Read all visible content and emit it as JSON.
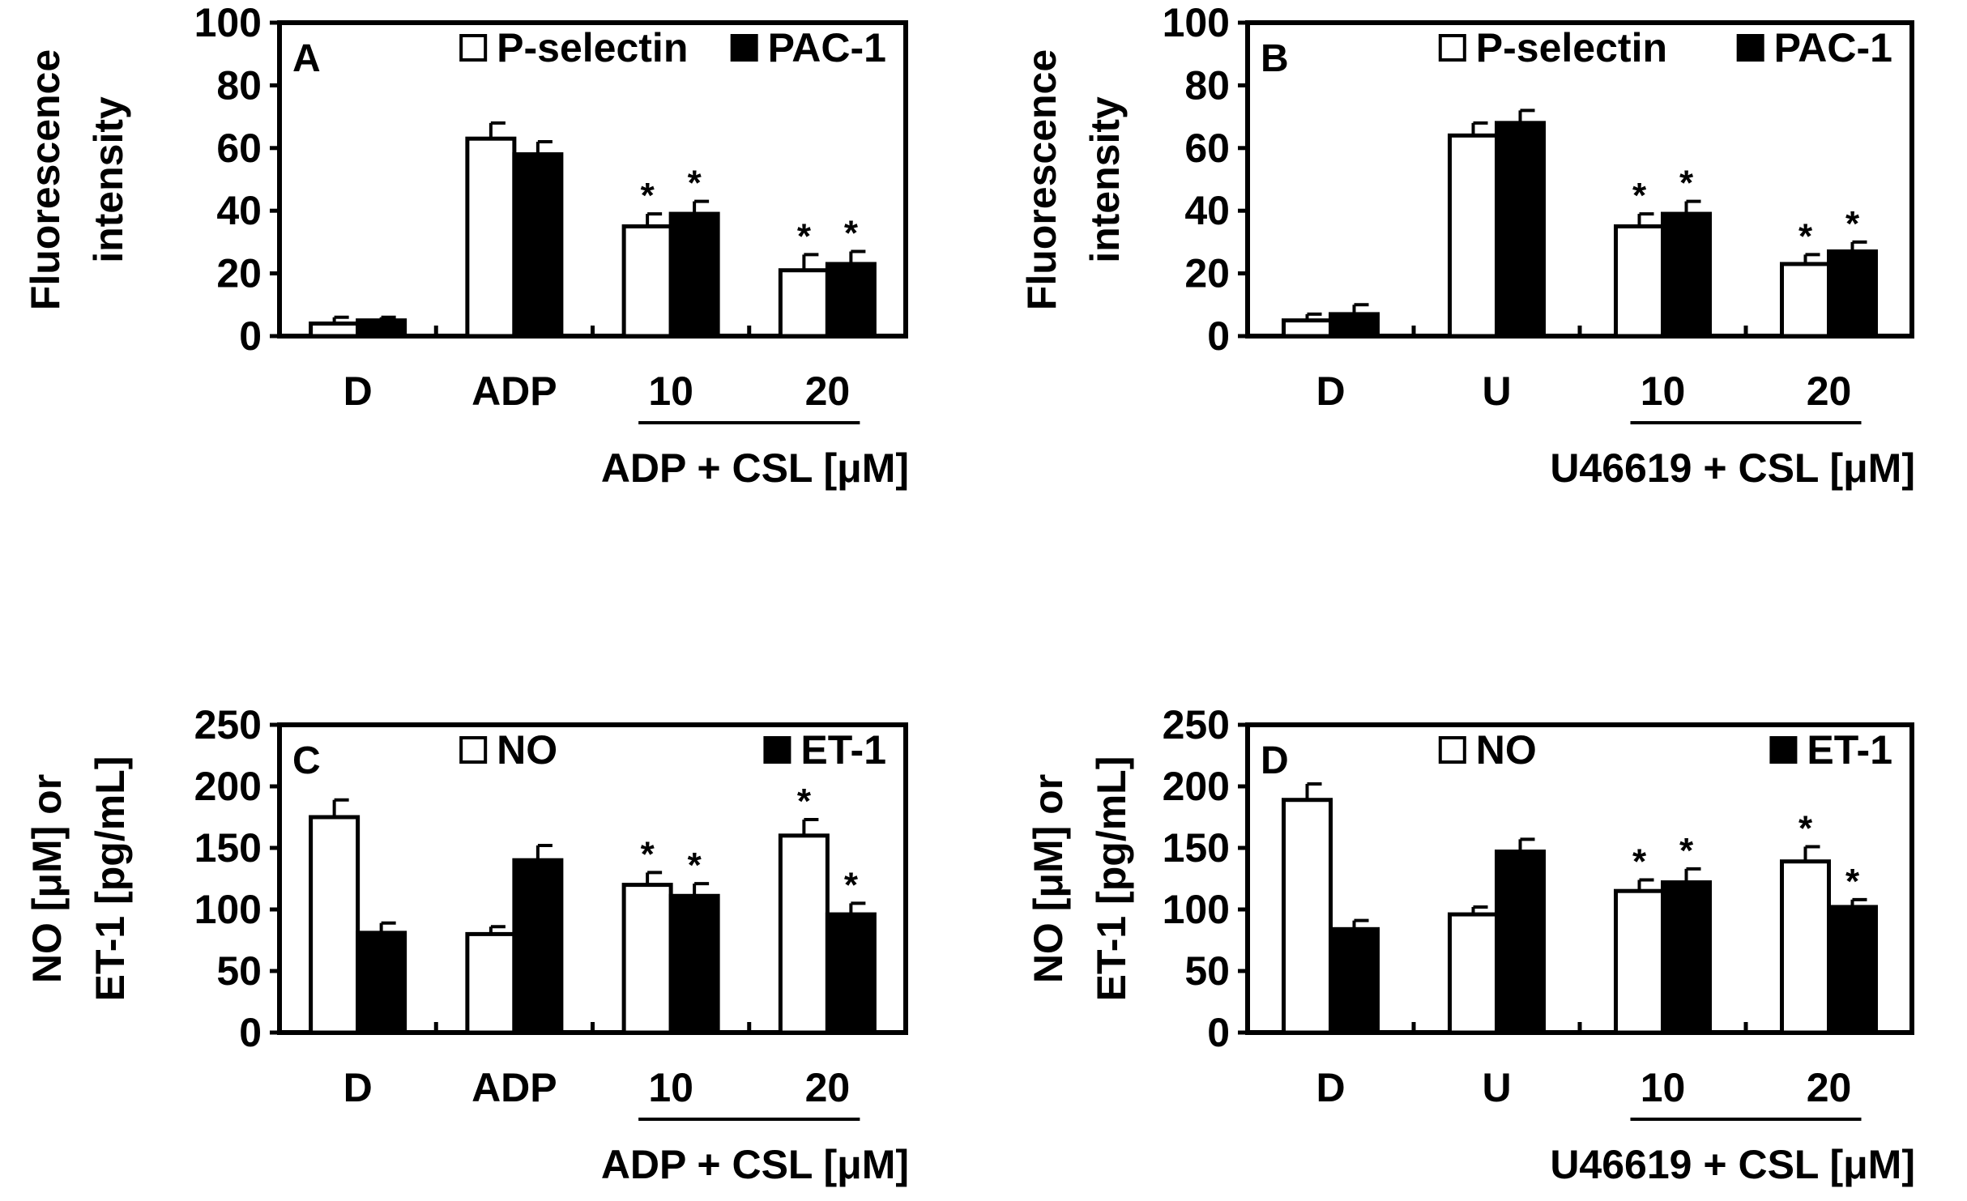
{
  "chart_data": [
    {
      "type": "bar",
      "panel": "A",
      "ylabel": [
        "Fluorescence",
        "intensity"
      ],
      "ylim": [
        0,
        100
      ],
      "yticks": [
        "0",
        "20",
        "40",
        "60",
        "80",
        "100"
      ],
      "categories": [
        "D",
        "ADP",
        "10",
        "20"
      ],
      "group_label": "ADP + CSL [μM]",
      "legend": {
        "placement": "top-right"
      },
      "series": [
        {
          "name": "P-selectin",
          "color": "#ffffff",
          "values": [
            4,
            63,
            35,
            21
          ],
          "errors": [
            2,
            5,
            4,
            5
          ],
          "sig": [
            "",
            "",
            "*",
            "*"
          ]
        },
        {
          "name": "PAC-1",
          "color": "#000000",
          "values": [
            5,
            58,
            39,
            23
          ],
          "errors": [
            1,
            4,
            4,
            4
          ],
          "sig": [
            "",
            "",
            "*",
            "*"
          ]
        }
      ]
    },
    {
      "type": "bar",
      "panel": "B",
      "ylabel": [
        "Fluorescence",
        "intensity"
      ],
      "ylim": [
        0,
        100
      ],
      "yticks": [
        "0",
        "20",
        "40",
        "60",
        "80",
        "100"
      ],
      "categories": [
        "D",
        "U",
        "10",
        "20"
      ],
      "group_label": "U46619 + CSL [μM]",
      "legend": {
        "placement": "top-right"
      },
      "series": [
        {
          "name": "P-selectin",
          "color": "#ffffff",
          "values": [
            5,
            64,
            35,
            23
          ],
          "errors": [
            2,
            4,
            4,
            3
          ],
          "sig": [
            "",
            "",
            "*",
            "*"
          ]
        },
        {
          "name": "PAC-1",
          "color": "#000000",
          "values": [
            7,
            68,
            39,
            27
          ],
          "errors": [
            3,
            4,
            4,
            3
          ],
          "sig": [
            "",
            "",
            "*",
            "*"
          ]
        }
      ]
    },
    {
      "type": "bar",
      "panel": "C",
      "ylabel": [
        "NO [μM] or",
        "ET-1 [pg/mL]"
      ],
      "ylim": [
        0,
        250
      ],
      "yticks": [
        "0",
        "50",
        "100",
        "150",
        "200",
        "250"
      ],
      "categories": [
        "D",
        "ADP",
        "10",
        "20"
      ],
      "group_label": "ADP + CSL [μM]",
      "legend": {
        "placement": "top-right"
      },
      "series": [
        {
          "name": "NO",
          "color": "#ffffff",
          "values": [
            175,
            80,
            120,
            160
          ],
          "errors": [
            14,
            6,
            10,
            13
          ],
          "sig": [
            "",
            "",
            "*",
            "*"
          ]
        },
        {
          "name": "ET-1",
          "color": "#000000",
          "values": [
            81,
            140,
            111,
            96
          ],
          "errors": [
            8,
            12,
            10,
            9
          ],
          "sig": [
            "",
            "",
            "*",
            "*"
          ]
        }
      ]
    },
    {
      "type": "bar",
      "panel": "D",
      "ylabel": [
        "NO [μM] or",
        "ET-1 [pg/mL]"
      ],
      "ylim": [
        0,
        250
      ],
      "yticks": [
        "0",
        "50",
        "100",
        "150",
        "200",
        "250"
      ],
      "categories": [
        "D",
        "U",
        "10",
        "20"
      ],
      "group_label": "U46619 + CSL [μM]",
      "legend": {
        "placement": "top-right"
      },
      "series": [
        {
          "name": "NO",
          "color": "#ffffff",
          "values": [
            189,
            96,
            115,
            139
          ],
          "errors": [
            13,
            6,
            9,
            12
          ],
          "sig": [
            "",
            "",
            "*",
            "*"
          ]
        },
        {
          "name": "ET-1",
          "color": "#000000",
          "values": [
            84,
            147,
            122,
            102
          ],
          "errors": [
            7,
            10,
            11,
            6
          ],
          "sig": [
            "",
            "",
            "*",
            "*"
          ]
        }
      ]
    }
  ]
}
